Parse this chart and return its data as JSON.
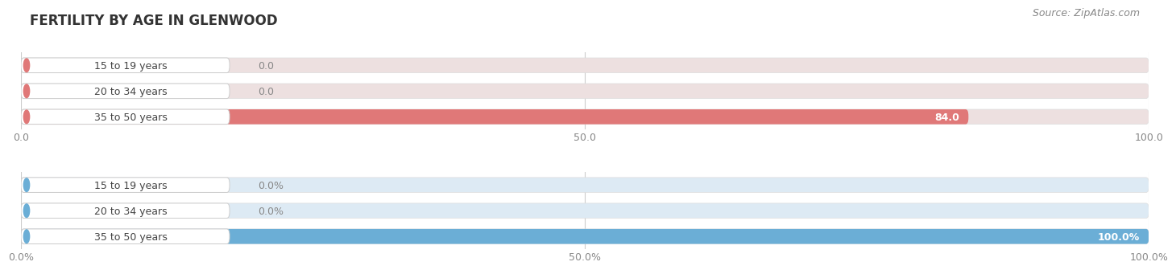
{
  "title": "FERTILITY BY AGE IN GLENWOOD",
  "source": "Source: ZipAtlas.com",
  "chart1": {
    "categories": [
      "15 to 19 years",
      "20 to 34 years",
      "35 to 50 years"
    ],
    "values": [
      0.0,
      0.0,
      84.0
    ],
    "xlim": [
      0,
      100
    ],
    "xticks": [
      0.0,
      50.0,
      100.0
    ],
    "xtick_labels": [
      "0.0",
      "50.0",
      "100.0"
    ],
    "bar_color": "#E07878",
    "bar_bg_color": "#EDE0E0",
    "label_left_circle_color": "#D96060"
  },
  "chart2": {
    "categories": [
      "15 to 19 years",
      "20 to 34 years",
      "35 to 50 years"
    ],
    "values": [
      0.0,
      0.0,
      100.0
    ],
    "xlim": [
      0,
      100
    ],
    "xticks": [
      0.0,
      50.0,
      100.0
    ],
    "xtick_labels": [
      "0.0%",
      "50.0%",
      "100.0%"
    ],
    "bar_color": "#6BAED6",
    "bar_bg_color": "#DDEAF4",
    "label_left_circle_color": "#5599CC"
  },
  "fig_bg_color": "#FFFFFF",
  "title_color": "#333333",
  "title_fontsize": 12,
  "source_fontsize": 9,
  "tick_fontsize": 9,
  "cat_fontsize": 9,
  "value_fontsize": 9,
  "bar_height": 0.58,
  "grid_color": "#CCCCCC",
  "label_box_facecolor": "#FFFFFF",
  "label_box_edgecolor": "#DDDDDD"
}
